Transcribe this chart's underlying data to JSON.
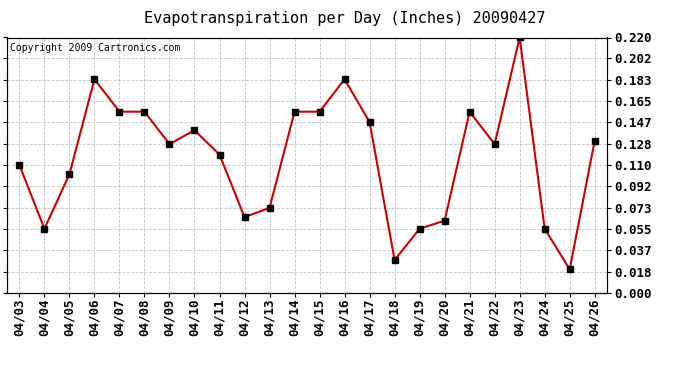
{
  "title": "Evapotranspiration per Day (Inches) 20090427",
  "copyright": "Copyright 2009 Cartronics.com",
  "x_labels": [
    "04/03",
    "04/04",
    "04/05",
    "04/06",
    "04/07",
    "04/08",
    "04/09",
    "04/10",
    "04/11",
    "04/12",
    "04/13",
    "04/14",
    "04/15",
    "04/16",
    "04/17",
    "04/18",
    "04/19",
    "04/20",
    "04/21",
    "04/22",
    "04/23",
    "04/24",
    "04/25",
    "04/26"
  ],
  "y_values": [
    0.11,
    0.055,
    0.102,
    0.184,
    0.156,
    0.156,
    0.128,
    0.14,
    0.119,
    0.065,
    0.073,
    0.156,
    0.156,
    0.184,
    0.147,
    0.028,
    0.055,
    0.062,
    0.156,
    0.128,
    0.22,
    0.055,
    0.02,
    0.131
  ],
  "y_ticks": [
    0.0,
    0.018,
    0.037,
    0.055,
    0.073,
    0.092,
    0.11,
    0.128,
    0.147,
    0.165,
    0.183,
    0.202,
    0.22
  ],
  "line_color": "#cc0000",
  "marker": "s",
  "marker_size": 4,
  "marker_color": "#000000",
  "bg_color": "#ffffff",
  "plot_bg_color": "#ffffff",
  "grid_color": "#aaaaaa",
  "ylim": [
    0.0,
    0.22
  ],
  "title_fontsize": 11,
  "copyright_fontsize": 7,
  "tick_fontsize": 9,
  "linewidth": 1.5
}
